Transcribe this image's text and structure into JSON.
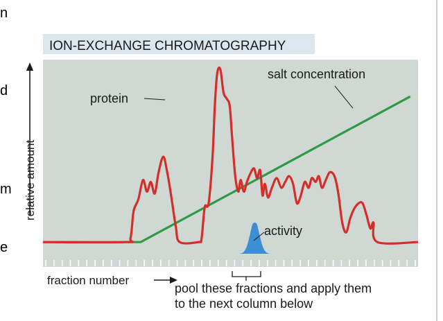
{
  "edge_text": [
    "n",
    "d",
    "m",
    "e"
  ],
  "chart_data": {
    "type": "line",
    "title": "ION-EXCHANGE CHROMATOGRAPHY",
    "xlabel": "fraction number",
    "ylabel": "relative amount",
    "grid": false,
    "legend": "none",
    "colors": {
      "plot_background": "#cfd8d3",
      "title_background": "#dbe6ee",
      "protein": "#d62d2a",
      "salt": "#2f9a45",
      "activity": "#3d8fd4",
      "ticks": "#ffffff"
    },
    "tick_count": 45,
    "series": [
      {
        "name": "protein",
        "points": [
          [
            0,
            0.06
          ],
          [
            10.5,
            0.06
          ],
          [
            11.2,
            0.08
          ],
          [
            11.6,
            0.22
          ],
          [
            12.2,
            0.28
          ],
          [
            12.8,
            0.38
          ],
          [
            13.3,
            0.32
          ],
          [
            13.8,
            0.37
          ],
          [
            14.3,
            0.31
          ],
          [
            14.8,
            0.42
          ],
          [
            15.4,
            0.5
          ],
          [
            15.9,
            0.42
          ],
          [
            16.4,
            0.3
          ],
          [
            17,
            0.14
          ],
          [
            17.5,
            0.06
          ],
          [
            19.9,
            0.06
          ],
          [
            20.3,
            0.08
          ],
          [
            20.7,
            0.24
          ],
          [
            21.2,
            0.26
          ],
          [
            21.7,
            0.5
          ],
          [
            22,
            0.77
          ],
          [
            22.3,
            0.93
          ],
          [
            22.7,
            0.95
          ],
          [
            23.1,
            0.83
          ],
          [
            23.5,
            0.8
          ],
          [
            23.9,
            0.76
          ],
          [
            24.2,
            0.6
          ],
          [
            24.6,
            0.4
          ],
          [
            25,
            0.32
          ],
          [
            25.3,
            0.38
          ],
          [
            25.7,
            0.32
          ],
          [
            26.1,
            0.37
          ],
          [
            26.5,
            0.41
          ],
          [
            27,
            0.44
          ],
          [
            27.4,
            0.39
          ],
          [
            27.8,
            0.43
          ],
          [
            28.1,
            0.3
          ],
          [
            28.4,
            0.36
          ],
          [
            28.8,
            0.29
          ],
          [
            29.3,
            0.34
          ],
          [
            29.9,
            0.39
          ],
          [
            30.5,
            0.34
          ],
          [
            31,
            0.37
          ],
          [
            31.5,
            0.4
          ],
          [
            32,
            0.36
          ],
          [
            32.5,
            0.26
          ],
          [
            33,
            0.3
          ],
          [
            33.5,
            0.37
          ],
          [
            34,
            0.34
          ],
          [
            34.4,
            0.39
          ],
          [
            34.9,
            0.37
          ],
          [
            35.3,
            0.4
          ],
          [
            35.7,
            0.34
          ],
          [
            36.2,
            0.38
          ],
          [
            36.7,
            0.42
          ],
          [
            37.3,
            0.4
          ],
          [
            37.8,
            0.31
          ],
          [
            38.3,
            0.16
          ],
          [
            38.8,
            0.11
          ],
          [
            39.3,
            0.18
          ],
          [
            39.8,
            0.23
          ],
          [
            40.4,
            0.26
          ],
          [
            40.9,
            0.26
          ],
          [
            41.4,
            0.2
          ],
          [
            41.9,
            0.13
          ],
          [
            42.3,
            0.16
          ],
          [
            42.8,
            0.06
          ],
          [
            48,
            0.06
          ]
        ]
      },
      {
        "name": "salt concentration",
        "points": [
          [
            0,
            0.06
          ],
          [
            12.5,
            0.06
          ],
          [
            47,
            0.81
          ]
        ]
      },
      {
        "name": "activity",
        "points": [
          [
            25.2,
            0
          ],
          [
            25.7,
            0.01
          ],
          [
            26.1,
            0.04
          ],
          [
            26.5,
            0.1
          ],
          [
            26.8,
            0.15
          ],
          [
            27.1,
            0.16
          ],
          [
            27.4,
            0.15
          ],
          [
            27.7,
            0.1
          ],
          [
            28.1,
            0.04
          ],
          [
            28.5,
            0.01
          ],
          [
            29,
            0
          ]
        ]
      }
    ],
    "annotations": {
      "protein": "protein",
      "salt": "salt concentration",
      "activity": "activity",
      "pool": "pool these fractions and apply them",
      "pool_line2": "to the next column below"
    }
  }
}
